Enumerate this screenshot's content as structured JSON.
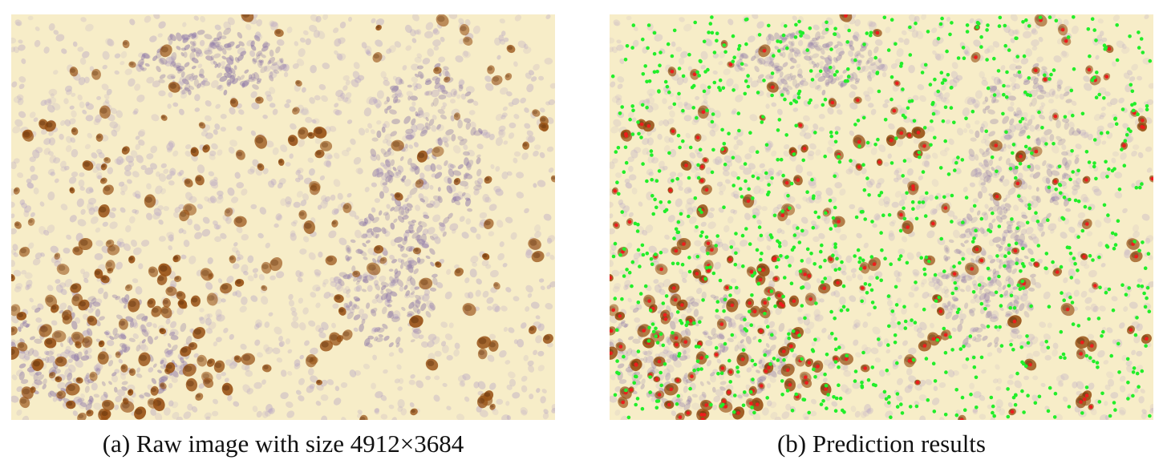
{
  "figure": {
    "panel_a": {
      "caption": "(a) Raw image with size 4912×3684",
      "image": "ihc-stained-tissue-micrograph"
    },
    "panel_b": {
      "caption": "(b) Prediction results",
      "image": "ihc-stained-tissue-micrograph-with-cell-markers"
    }
  },
  "colors": {
    "tissue_background": "#f7edc8",
    "hematoxylin_nucleus": "#b8a6c4",
    "dab_positive_nucleus": "#9a5418",
    "positive_marker": "#ee1c1c",
    "negative_marker": "#22ee2a"
  }
}
